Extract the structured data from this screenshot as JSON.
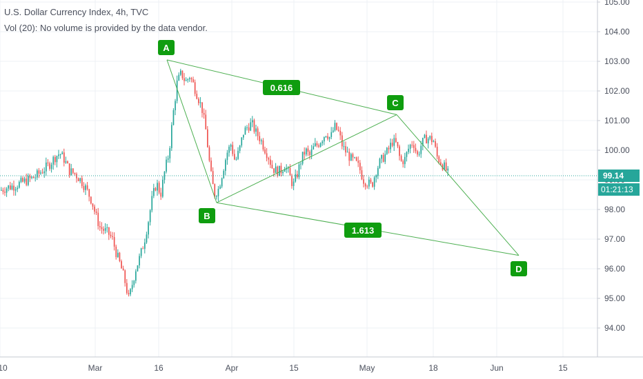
{
  "header": {
    "title": "U.S. Dollar Currency Index, 4h, TVC",
    "volume_note": "Vol (20): No volume is provided by the data vendor."
  },
  "price_axis": {
    "ticks": [
      "105.00",
      "104.00",
      "103.00",
      "102.00",
      "101.00",
      "100.00",
      "99.00",
      "98.00",
      "97.00",
      "96.00",
      "95.00",
      "94.00"
    ],
    "current_price": "99.14",
    "countdown": "01:21:13"
  },
  "time_axis": {
    "labels": [
      "10",
      "Mar",
      "16",
      "Apr",
      "15",
      "May",
      "18",
      "Jun",
      "15"
    ]
  },
  "pattern": {
    "points": [
      {
        "label": "A",
        "price": 103.05
      },
      {
        "label": "B",
        "price": 98.23
      },
      {
        "label": "C",
        "price": 101.2
      },
      {
        "label": "D",
        "price": 96.45
      }
    ],
    "ratios": [
      "0.616",
      "1.613"
    ],
    "color": "#4caf50",
    "label_color": "#0f9d0f"
  },
  "colors": {
    "up_candle": "#26a69a",
    "down_candle": "#ef5350",
    "price_tag": "#26a69a",
    "grid": "#eef0f4"
  },
  "chart_data": {
    "type": "candlestick",
    "title": "U.S. Dollar Currency Index, 4h, TVC",
    "series_path_close": [
      [
        -6,
        98.55
      ],
      [
        0,
        98.65
      ],
      [
        10,
        98.75
      ],
      [
        20,
        98.8
      ],
      [
        30,
        98.9
      ],
      [
        40,
        99.0
      ],
      [
        50,
        99.1
      ],
      [
        60,
        99.3
      ],
      [
        70,
        99.5
      ],
      [
        80,
        99.8
      ],
      [
        86,
        99.9
      ],
      [
        92,
        99.7
      ],
      [
        100,
        99.3
      ],
      [
        108,
        99.2
      ],
      [
        116,
        99.0
      ],
      [
        124,
        98.7
      ],
      [
        132,
        98.3
      ],
      [
        138,
        97.8
      ],
      [
        144,
        97.4
      ],
      [
        150,
        97.3
      ],
      [
        156,
        97.2
      ],
      [
        162,
        97.0
      ],
      [
        168,
        96.5
      ],
      [
        174,
        96.1
      ],
      [
        180,
        95.6
      ],
      [
        186,
        94.95
      ],
      [
        190,
        95.4
      ],
      [
        196,
        96.0
      ],
      [
        202,
        96.4
      ],
      [
        208,
        96.9
      ],
      [
        214,
        97.6
      ],
      [
        220,
        98.4
      ],
      [
        226,
        98.9
      ],
      [
        232,
        98.5
      ],
      [
        238,
        99.3
      ],
      [
        244,
        99.9
      ],
      [
        250,
        101.2
      ],
      [
        256,
        102.3
      ],
      [
        262,
        102.6
      ],
      [
        268,
        102.3
      ],
      [
        274,
        102.5
      ],
      [
        280,
        102.2
      ],
      [
        286,
        101.8
      ],
      [
        292,
        101.4
      ],
      [
        298,
        100.6
      ],
      [
        304,
        99.3
      ],
      [
        310,
        98.5
      ],
      [
        316,
        98.7
      ],
      [
        322,
        99.3
      ],
      [
        328,
        99.9
      ],
      [
        334,
        100.2
      ],
      [
        340,
        99.6
      ],
      [
        346,
        100.0
      ],
      [
        352,
        100.6
      ],
      [
        358,
        100.8
      ],
      [
        364,
        100.9
      ],
      [
        370,
        100.6
      ],
      [
        376,
        100.4
      ],
      [
        382,
        100.1
      ],
      [
        388,
        99.8
      ],
      [
        394,
        99.4
      ],
      [
        400,
        99.3
      ],
      [
        406,
        99.3
      ],
      [
        412,
        99.5
      ],
      [
        418,
        99.2
      ],
      [
        424,
        98.8
      ],
      [
        430,
        99.2
      ],
      [
        436,
        99.7
      ],
      [
        442,
        100.0
      ],
      [
        448,
        99.8
      ],
      [
        454,
        100.1
      ],
      [
        460,
        100.2
      ],
      [
        466,
        100.4
      ],
      [
        472,
        100.6
      ],
      [
        478,
        100.4
      ],
      [
        484,
        100.8
      ],
      [
        490,
        100.6
      ],
      [
        496,
        100.1
      ],
      [
        502,
        99.9
      ],
      [
        508,
        99.7
      ],
      [
        514,
        99.6
      ],
      [
        520,
        99.4
      ],
      [
        526,
        99.0
      ],
      [
        532,
        98.9
      ],
      [
        538,
        98.8
      ],
      [
        544,
        99.3
      ],
      [
        550,
        99.6
      ],
      [
        556,
        99.8
      ],
      [
        562,
        100.0
      ],
      [
        568,
        100.3
      ],
      [
        574,
        100.2
      ],
      [
        580,
        99.6
      ],
      [
        586,
        99.7
      ],
      [
        592,
        100.1
      ],
      [
        598,
        100.3
      ],
      [
        604,
        99.8
      ],
      [
        610,
        100.2
      ],
      [
        616,
        100.4
      ],
      [
        622,
        100.4
      ],
      [
        628,
        100.3
      ],
      [
        632,
        99.8
      ],
      [
        638,
        99.6
      ],
      [
        644,
        99.4
      ],
      [
        650,
        99.14
      ]
    ]
  }
}
